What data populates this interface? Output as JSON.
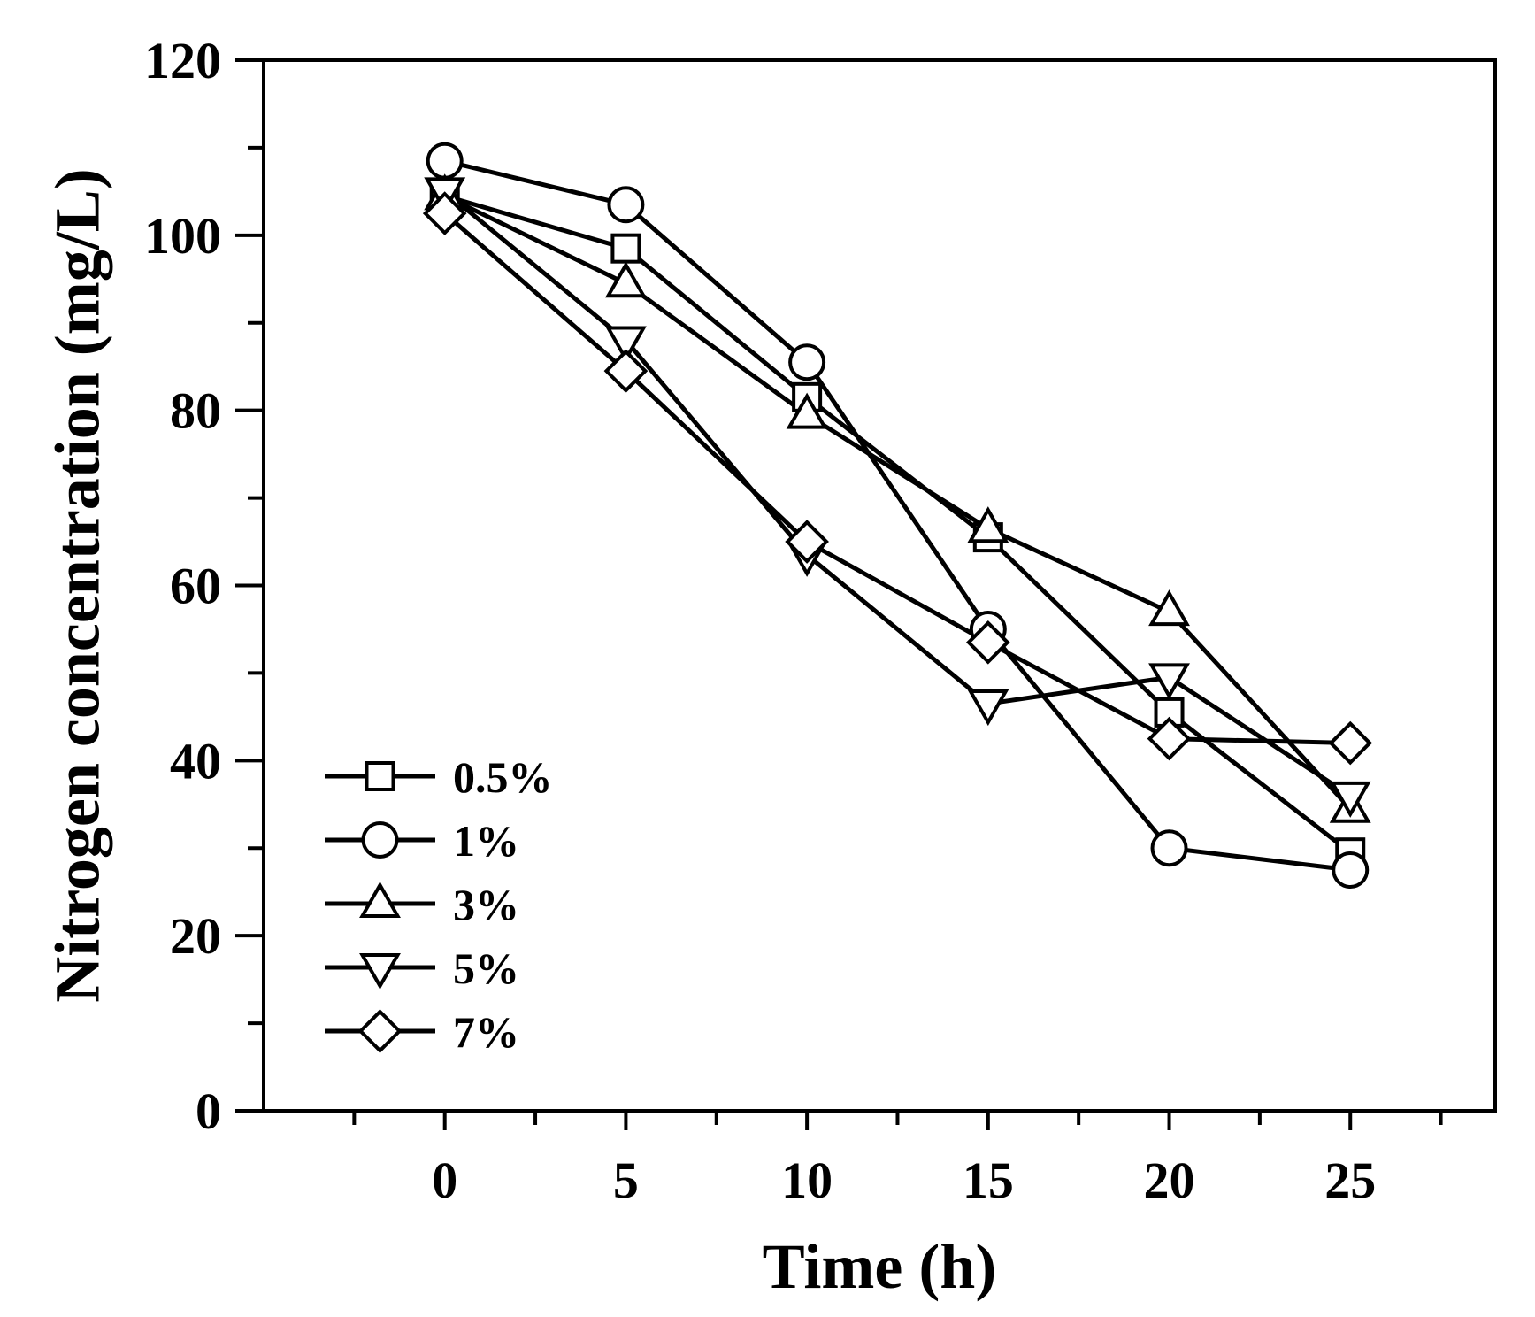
{
  "chart_data": {
    "type": "line",
    "title": "",
    "xlabel": "Time (h)",
    "ylabel": "Nitrogen concentration (mg/L)",
    "xlim": [
      -5,
      29
    ],
    "ylim": [
      0,
      120
    ],
    "x_major_ticks": [
      0,
      5,
      10,
      15,
      20,
      25
    ],
    "x_minor_ticks": [
      -2.5,
      2.5,
      7.5,
      12.5,
      17.5,
      22.5,
      27.5
    ],
    "y_major_ticks": [
      0,
      20,
      40,
      60,
      80,
      100,
      120
    ],
    "y_minor_ticks": [
      10,
      30,
      50,
      70,
      90,
      110
    ],
    "x_tick_labels": [
      "0",
      "5",
      "10",
      "15",
      "20",
      "25"
    ],
    "y_tick_labels": [
      "0",
      "20",
      "40",
      "60",
      "80",
      "100",
      "120"
    ],
    "legend_position": "lower-left",
    "grid": false,
    "x": [
      0,
      5,
      10,
      15,
      20,
      25
    ],
    "series": [
      {
        "name": "0.5%",
        "marker": "square",
        "values": [
          104.5,
          98.5,
          81.5,
          65.5,
          45.5,
          29.5
        ]
      },
      {
        "name": "1%",
        "marker": "circle",
        "values": [
          108.5,
          103.5,
          85.5,
          55,
          30,
          27.5
        ]
      },
      {
        "name": "3%",
        "marker": "triangle-up",
        "values": [
          104.5,
          94.5,
          79.5,
          66.5,
          57,
          34.5
        ]
      },
      {
        "name": "5%",
        "marker": "triangle-down",
        "values": [
          105,
          88,
          63.5,
          46.5,
          49.5,
          36
        ]
      },
      {
        "name": "7%",
        "marker": "diamond",
        "values": [
          102.5,
          84.5,
          65,
          53.5,
          42.5,
          42
        ]
      }
    ]
  }
}
